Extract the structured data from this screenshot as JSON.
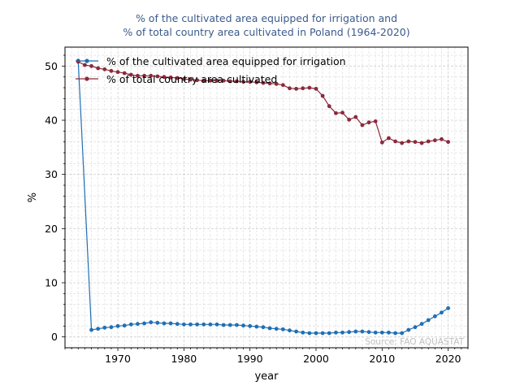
{
  "chart_data": {
    "type": "line",
    "title_lines": [
      "% of the cultivated area equipped for irrigation and",
      "% of total country area cultivated in Poland (1964-2020)"
    ],
    "xlabel": "year",
    "ylabel": "%",
    "xlim": [
      1962,
      2023
    ],
    "ylim": [
      -2,
      53.5
    ],
    "x_ticks": [
      1970,
      1980,
      1990,
      2000,
      2010,
      2020
    ],
    "y_ticks": [
      0,
      10,
      20,
      30,
      40,
      50
    ],
    "grid": true,
    "legend_position": "top-left",
    "source": "Source: FAO AQUASTAT",
    "series": [
      {
        "name": "% of the cultivated area equipped for irrigation",
        "color": "#1f6fb4",
        "x": [
          1964,
          1966,
          1967,
          1968,
          1969,
          1970,
          1971,
          1972,
          1973,
          1974,
          1975,
          1976,
          1977,
          1978,
          1979,
          1980,
          1981,
          1982,
          1983,
          1984,
          1985,
          1986,
          1987,
          1988,
          1989,
          1990,
          1991,
          1992,
          1993,
          1994,
          1995,
          1996,
          1997,
          1998,
          1999,
          2000,
          2001,
          2002,
          2003,
          2004,
          2005,
          2006,
          2007,
          2008,
          2009,
          2010,
          2011,
          2012,
          2013,
          2014,
          2015,
          2016,
          2017,
          2018,
          2019,
          2020
        ],
        "y": [
          51.0,
          1.3,
          1.5,
          1.7,
          1.8,
          2.0,
          2.1,
          2.3,
          2.4,
          2.5,
          2.7,
          2.6,
          2.5,
          2.5,
          2.4,
          2.3,
          2.3,
          2.3,
          2.3,
          2.3,
          2.3,
          2.2,
          2.2,
          2.2,
          2.1,
          2.0,
          1.9,
          1.8,
          1.6,
          1.5,
          1.4,
          1.2,
          1.0,
          0.8,
          0.7,
          0.7,
          0.7,
          0.7,
          0.8,
          0.8,
          0.9,
          1.0,
          1.0,
          0.9,
          0.8,
          0.8,
          0.8,
          0.7,
          0.7,
          1.3,
          1.8,
          2.4,
          3.1,
          3.8,
          4.5,
          5.3
        ]
      },
      {
        "name": "% of total country area cultivated",
        "color": "#8b2a3c",
        "x": [
          1964,
          1965,
          1966,
          1967,
          1968,
          1969,
          1970,
          1971,
          1972,
          1973,
          1974,
          1975,
          1976,
          1977,
          1978,
          1979,
          1980,
          1981,
          1982,
          1983,
          1984,
          1985,
          1986,
          1987,
          1988,
          1989,
          1990,
          1991,
          1992,
          1993,
          1994,
          1995,
          1996,
          1997,
          1998,
          1999,
          2000,
          2001,
          2002,
          2003,
          2004,
          2005,
          2006,
          2007,
          2008,
          2009,
          2010,
          2011,
          2012,
          2013,
          2014,
          2015,
          2016,
          2017,
          2018,
          2019,
          2020
        ],
        "y": [
          50.8,
          50.2,
          50.0,
          49.6,
          49.4,
          49.1,
          48.9,
          48.7,
          48.4,
          48.2,
          48.2,
          48.2,
          48.1,
          48.0,
          47.9,
          47.8,
          47.6,
          47.5,
          47.4,
          47.3,
          47.3,
          47.3,
          47.3,
          47.2,
          47.2,
          47.1,
          47.1,
          47.0,
          46.9,
          46.8,
          46.7,
          46.5,
          45.9,
          45.8,
          45.9,
          46.0,
          45.8,
          44.5,
          42.6,
          41.3,
          41.4,
          40.1,
          40.6,
          39.1,
          39.6,
          39.8,
          35.9,
          36.7,
          36.1,
          35.8,
          36.1,
          36.0,
          35.8,
          36.1,
          36.3,
          36.5,
          36.0
        ]
      }
    ]
  }
}
